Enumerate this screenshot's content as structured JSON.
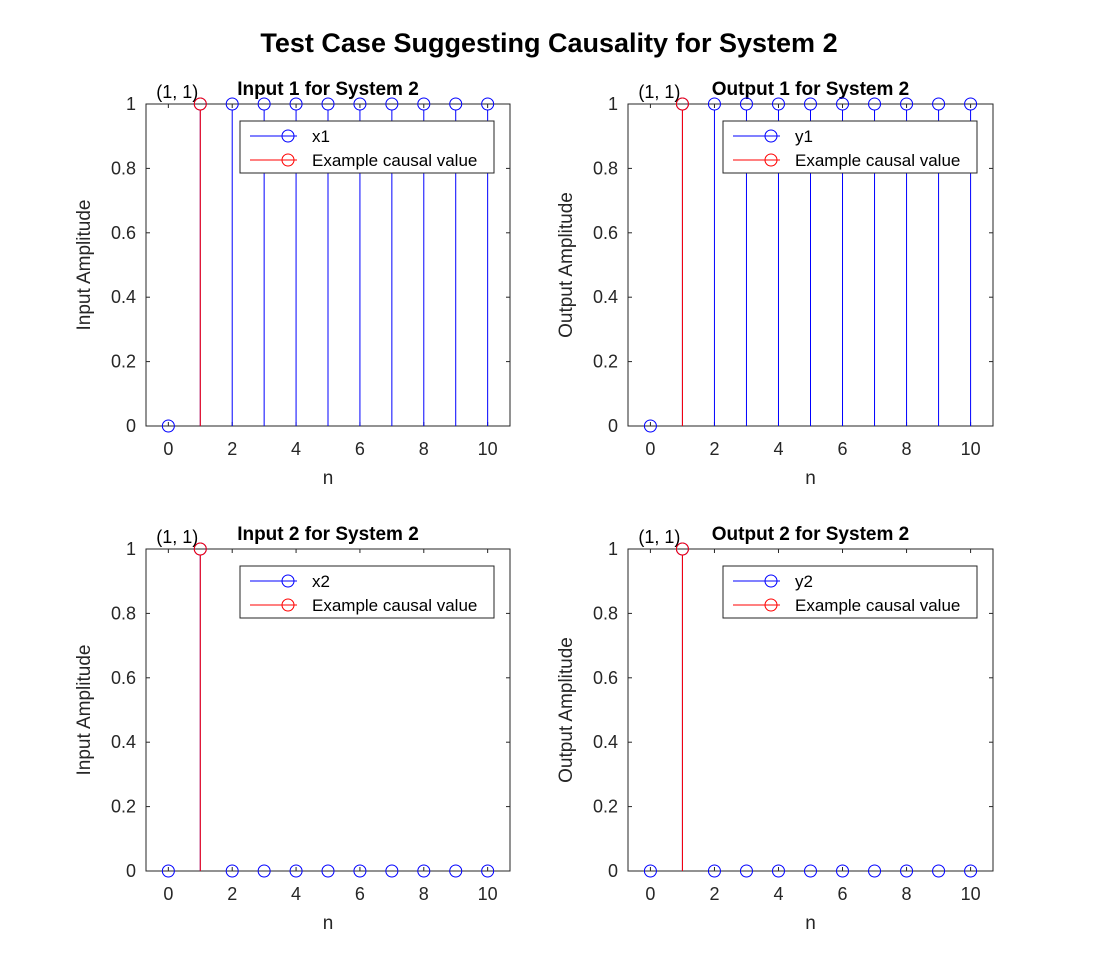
{
  "figure": {
    "title": "Test Case Suggesting Causality for System 2"
  },
  "colors": {
    "signal": "#0000ff",
    "highlight": "#ff0000",
    "axis": "#262626",
    "text": "#000000"
  },
  "chart_data": [
    {
      "type": "stem",
      "title": "Input 1 for System 2",
      "xlabel": "n",
      "ylabel": "Input Amplitude",
      "xlim": [
        -0.7,
        10.7
      ],
      "ylim": [
        0,
        1
      ],
      "xticks": [
        0,
        2,
        4,
        6,
        8,
        10
      ],
      "yticks": [
        0,
        0.2,
        0.4,
        0.6,
        0.8,
        1
      ],
      "legend_position": "top-right",
      "annotation": {
        "text": "(1, 1)",
        "x": 1,
        "y": 1
      },
      "series": [
        {
          "name": "x1",
          "color": "blue",
          "x": [
            0,
            1,
            2,
            3,
            4,
            5,
            6,
            7,
            8,
            9,
            10
          ],
          "values": [
            0,
            1,
            1,
            1,
            1,
            1,
            1,
            1,
            1,
            1,
            1
          ]
        },
        {
          "name": "Example causal value",
          "color": "red",
          "x": [
            1
          ],
          "values": [
            1
          ]
        }
      ]
    },
    {
      "type": "stem",
      "title": "Output 1 for System 2",
      "xlabel": "n",
      "ylabel": "Output Amplitude",
      "xlim": [
        -0.7,
        10.7
      ],
      "ylim": [
        0,
        1
      ],
      "xticks": [
        0,
        2,
        4,
        6,
        8,
        10
      ],
      "yticks": [
        0,
        0.2,
        0.4,
        0.6,
        0.8,
        1
      ],
      "legend_position": "top-right",
      "annotation": {
        "text": "(1, 1)",
        "x": 1,
        "y": 1
      },
      "series": [
        {
          "name": "y1",
          "color": "blue",
          "x": [
            0,
            1,
            2,
            3,
            4,
            5,
            6,
            7,
            8,
            9,
            10
          ],
          "values": [
            0,
            1,
            1,
            1,
            1,
            1,
            1,
            1,
            1,
            1,
            1
          ]
        },
        {
          "name": "Example causal value",
          "color": "red",
          "x": [
            1
          ],
          "values": [
            1
          ]
        }
      ]
    },
    {
      "type": "stem",
      "title": "Input 2 for System 2",
      "xlabel": "n",
      "ylabel": "Input Amplitude",
      "xlim": [
        -0.7,
        10.7
      ],
      "ylim": [
        0,
        1
      ],
      "xticks": [
        0,
        2,
        4,
        6,
        8,
        10
      ],
      "yticks": [
        0,
        0.2,
        0.4,
        0.6,
        0.8,
        1
      ],
      "legend_position": "top-right",
      "annotation": {
        "text": "(1, 1)",
        "x": 1,
        "y": 1
      },
      "series": [
        {
          "name": "x2",
          "color": "blue",
          "x": [
            0,
            1,
            2,
            3,
            4,
            5,
            6,
            7,
            8,
            9,
            10
          ],
          "values": [
            0,
            1,
            0,
            0,
            0,
            0,
            0,
            0,
            0,
            0,
            0
          ]
        },
        {
          "name": "Example causal value",
          "color": "red",
          "x": [
            1
          ],
          "values": [
            1
          ]
        }
      ]
    },
    {
      "type": "stem",
      "title": "Output 2 for System 2",
      "xlabel": "n",
      "ylabel": "Output Amplitude",
      "xlim": [
        -0.7,
        10.7
      ],
      "ylim": [
        0,
        1
      ],
      "xticks": [
        0,
        2,
        4,
        6,
        8,
        10
      ],
      "yticks": [
        0,
        0.2,
        0.4,
        0.6,
        0.8,
        1
      ],
      "legend_position": "top-right",
      "annotation": {
        "text": "(1, 1)",
        "x": 1,
        "y": 1
      },
      "series": [
        {
          "name": "y2",
          "color": "blue",
          "x": [
            0,
            1,
            2,
            3,
            4,
            5,
            6,
            7,
            8,
            9,
            10
          ],
          "values": [
            0,
            1,
            0,
            0,
            0,
            0,
            0,
            0,
            0,
            0,
            0
          ]
        },
        {
          "name": "Example causal value",
          "color": "red",
          "x": [
            1
          ],
          "values": [
            1
          ]
        }
      ]
    }
  ]
}
